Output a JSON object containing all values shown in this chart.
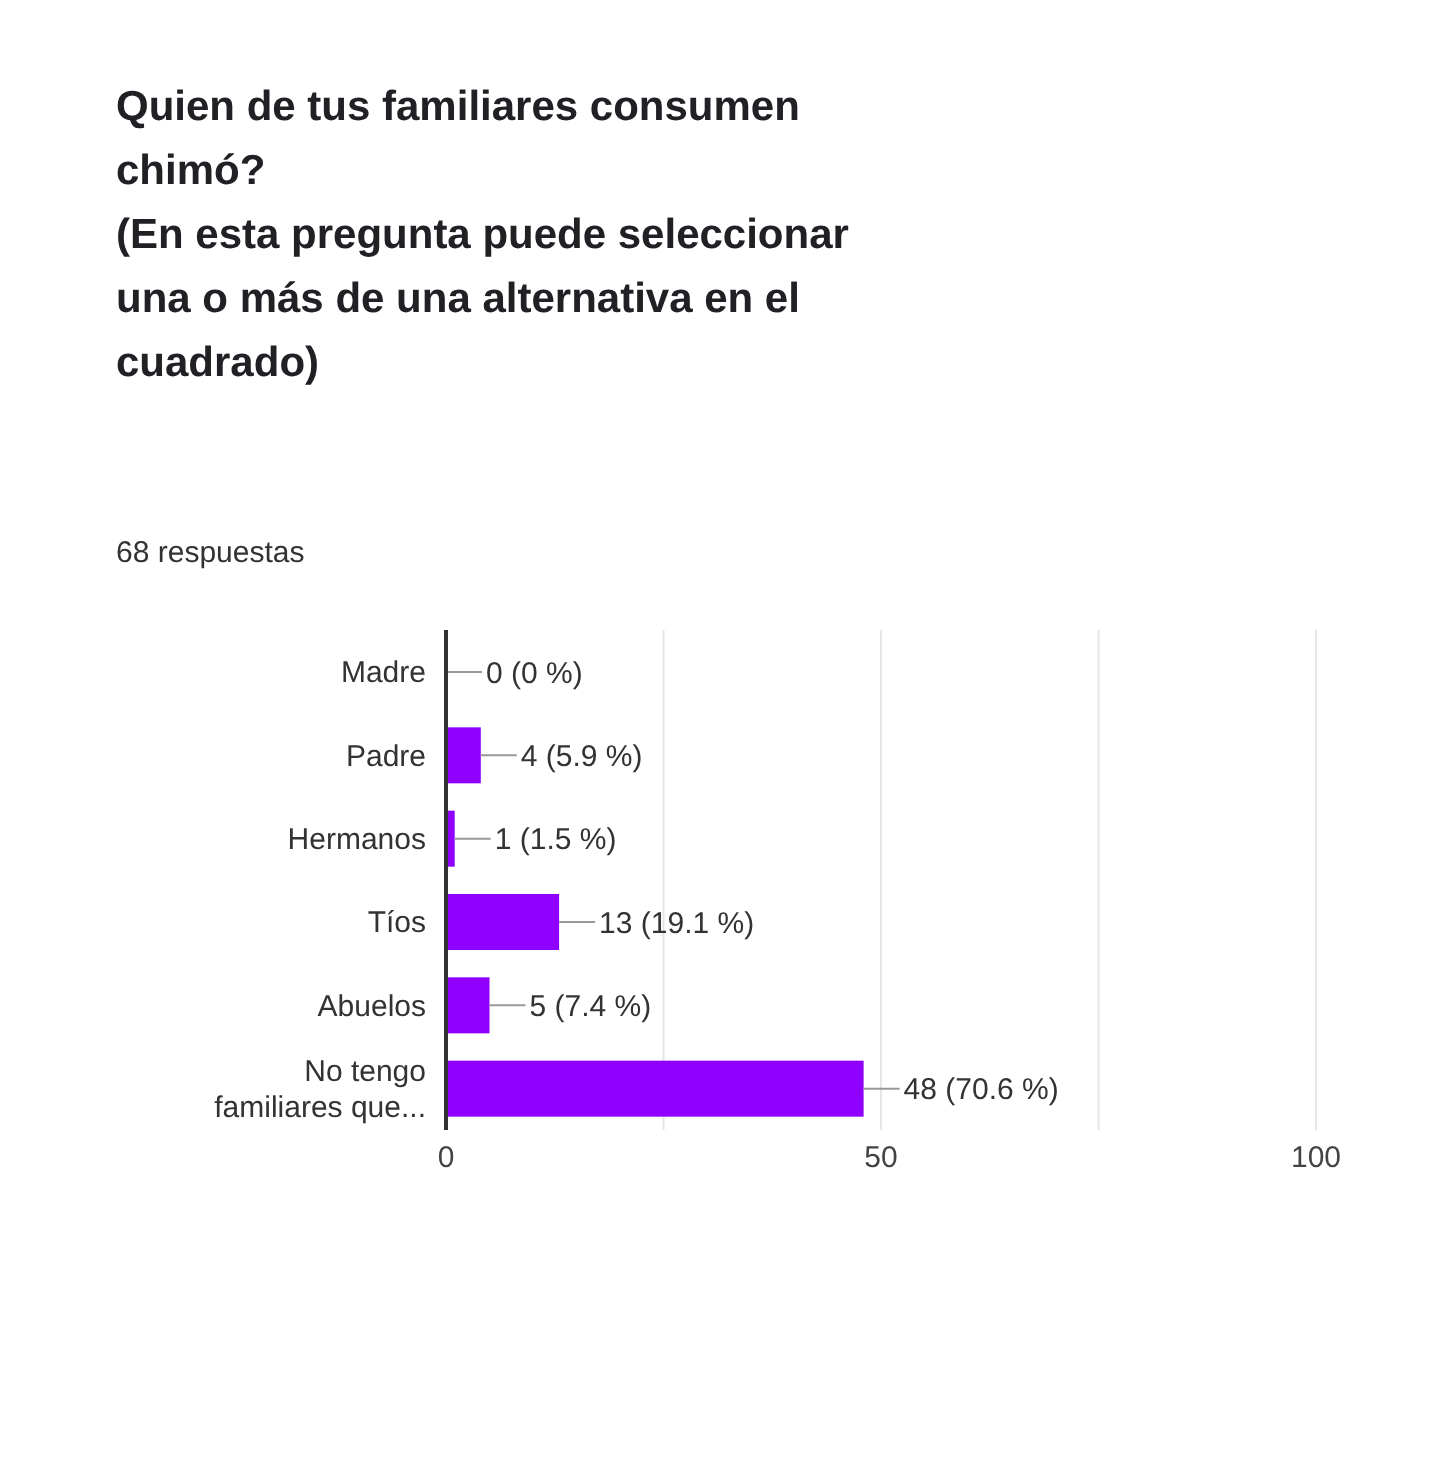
{
  "chart_data": {
    "type": "bar",
    "orientation": "horizontal",
    "title": "Quien de tus familiares consumen chimó?\n(En esta pregunta puede seleccionar una o más de una alternativa en el cuadrado)",
    "subtitle": "68 respuestas",
    "categories": [
      "Madre",
      "Padre",
      "Hermanos",
      "Tíos",
      "Abuelos",
      "No tengo familiares que..."
    ],
    "values": [
      0,
      4,
      1,
      13,
      5,
      48
    ],
    "value_labels": [
      "0 (0 %)",
      "4 (5.9 %)",
      "1 (1.5 %)",
      "13 (19.1 %)",
      "5 (7.4 %)",
      "48 (70.6 %)"
    ],
    "color": "#8f00ff",
    "xlim": [
      0,
      100
    ],
    "xticks": [
      0,
      {
        "value": 25,
        "label": null
      },
      50,
      {
        "value": 75,
        "label": null
      },
      100
    ],
    "grid": "x",
    "legend": false
  }
}
